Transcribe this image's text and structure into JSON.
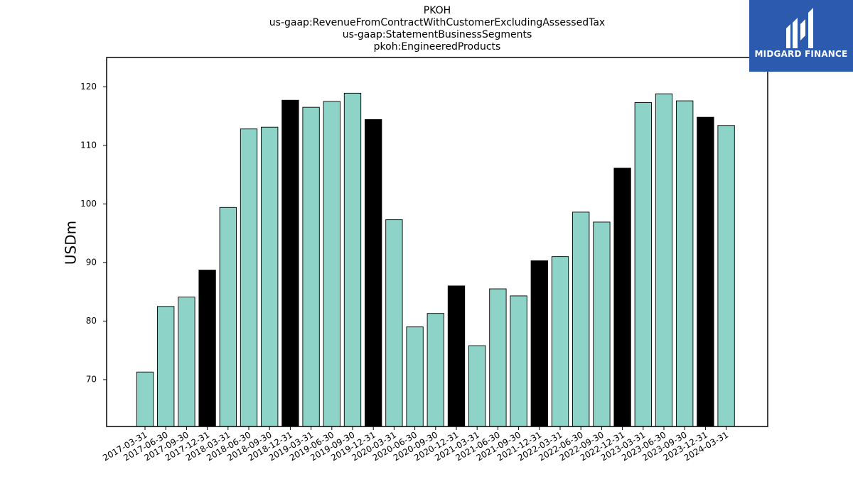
{
  "chart_data": {
    "type": "bar",
    "title_lines": [
      "PKOH",
      "us-gaap:RevenueFromContractWithCustomerExcludingAssessedTax",
      "us-gaap:StatementBusinessSegments",
      "pkoh:EngineeredProducts"
    ],
    "ylabel": "USDm",
    "xlabel": "",
    "ylim": [
      62,
      125
    ],
    "yticks": [
      70,
      80,
      90,
      100,
      110,
      120
    ],
    "categories": [
      "2017-03-31",
      "2017-06-30",
      "2017-09-30",
      "2017-12-31",
      "2018-03-31",
      "2018-06-30",
      "2018-09-30",
      "2018-12-31",
      "2019-03-31",
      "2019-06-30",
      "2019-09-30",
      "2019-12-31",
      "2020-03-31",
      "2020-06-30",
      "2020-09-30",
      "2020-12-31",
      "2021-03-31",
      "2021-06-30",
      "2021-09-30",
      "2021-12-31",
      "2022-03-31",
      "2022-06-30",
      "2022-09-30",
      "2022-12-31",
      "2023-03-31",
      "2023-06-30",
      "2023-09-30",
      "2023-12-31",
      "2024-03-31"
    ],
    "values": [
      71.3,
      82.5,
      84.1,
      88.7,
      99.4,
      112.8,
      113.1,
      117.7,
      116.5,
      117.5,
      118.9,
      114.4,
      97.3,
      79.0,
      81.3,
      86.0,
      75.8,
      85.5,
      84.3,
      90.3,
      91.0,
      98.6,
      96.9,
      106.1,
      117.3,
      118.8,
      117.6,
      114.8,
      113.4
    ],
    "colors": {
      "quarter": "#8dd3c7",
      "year_end": "#000000"
    },
    "grid": false,
    "legend": "none"
  },
  "logo": {
    "text": "MIDGARD FINANCE",
    "background": "#2b5aae"
  }
}
